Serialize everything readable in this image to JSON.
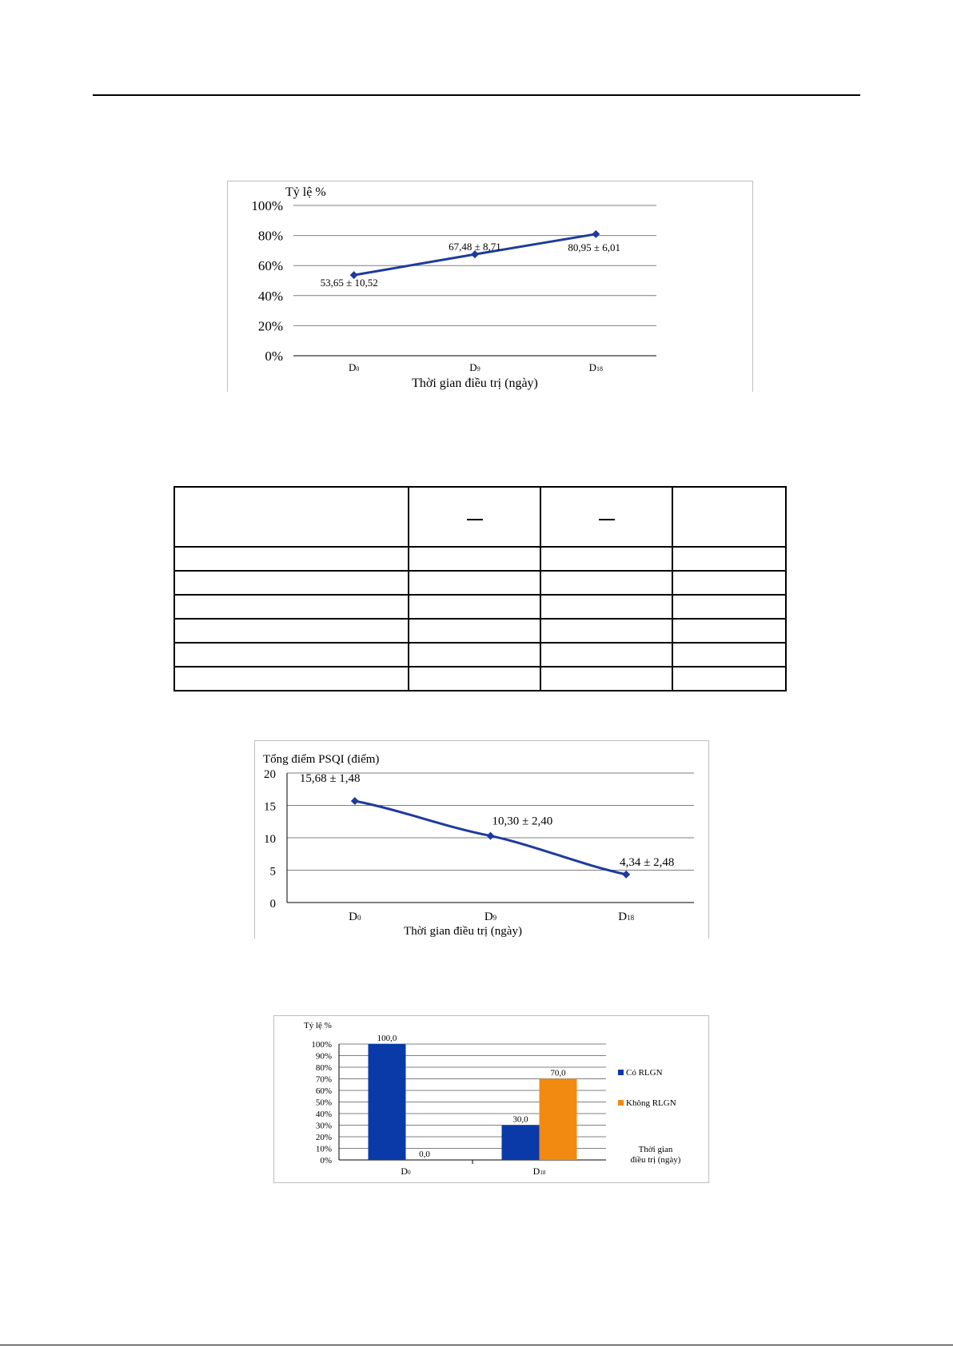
{
  "chart_data": [
    {
      "type": "line",
      "ylabel": "Tỷ lệ %",
      "xlabel": "Thời gian điều trị (ngày)",
      "categories": [
        "D0",
        "D9",
        "D18"
      ],
      "values": [
        53.65,
        67.48,
        80.95
      ],
      "data_labels": [
        "53,65 ± 10,52",
        "67,48 ± 8,71",
        "80,95 ± 6,01"
      ],
      "yticks": [
        "100%",
        "80%",
        "60%",
        "40%",
        "20%",
        "0%"
      ],
      "ylim": [
        0,
        100
      ],
      "grid": true,
      "legend": "none",
      "line_color": "#1f3a9e",
      "marker_color": "#1f3a9e"
    },
    {
      "type": "line",
      "ylabel": "Tổng điểm PSQI (điểm)",
      "xlabel": "Thời gian điều trị (ngày)",
      "categories": [
        "D0",
        "D9",
        "D18"
      ],
      "values": [
        15.68,
        10.3,
        4.34
      ],
      "data_labels": [
        "15,68 ± 1,48",
        "10,30 ± 2,40",
        "4,34 ± 2,48"
      ],
      "yticks": [
        "20",
        "15",
        "10",
        "5",
        "0"
      ],
      "ylim": [
        0,
        20
      ],
      "grid": true,
      "legend": "none",
      "line_color": "#1f3a9e",
      "marker_color": "#1f3a9e"
    },
    {
      "type": "bar",
      "ylabel": "Tỷ lệ %",
      "xlabel": "Thời gian điều trị (ngày)",
      "categories": [
        "D0",
        "D18"
      ],
      "series": [
        {
          "name": "Có RLGN",
          "values": [
            100.0,
            30.0
          ],
          "labels": [
            "100,0",
            "30,0"
          ],
          "color": "#0a3aa8"
        },
        {
          "name": "Không RLGN",
          "values": [
            0.0,
            70.0
          ],
          "labels": [
            "0,0",
            "70,0"
          ],
          "color": "#f28a12"
        }
      ],
      "yticks": [
        "100%",
        "90%",
        "80%",
        "70%",
        "60%",
        "50%",
        "40%",
        "30%",
        "20%",
        "10%",
        "0%"
      ],
      "ylim": [
        0,
        100
      ],
      "grid": true,
      "legend": "right"
    }
  ],
  "table": {
    "rows": 6,
    "columns": 4
  }
}
